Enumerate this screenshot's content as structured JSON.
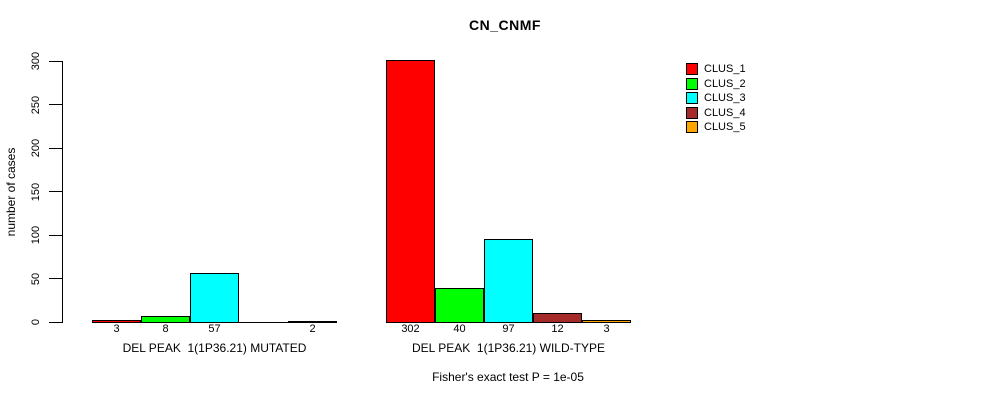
{
  "title": "CN_CNMF",
  "y_axis": {
    "label": "number of cases",
    "ticks": [
      0,
      50,
      100,
      150,
      200,
      250,
      300
    ]
  },
  "footer": "Fisher's exact test P = 1e-05",
  "legend": {
    "position": "right",
    "items": [
      {
        "label": "CLUS_1",
        "color": "#FF0000"
      },
      {
        "label": "CLUS_2",
        "color": "#00FF00"
      },
      {
        "label": "CLUS_3",
        "color": "#00FFFF"
      },
      {
        "label": "CLUS_4",
        "color": "#A52A2A"
      },
      {
        "label": "CLUS_5",
        "color": "#FFA500"
      }
    ]
  },
  "chart_data": {
    "type": "bar",
    "title": "CN_CNMF",
    "ylabel": "number of cases",
    "ylim": [
      0,
      300
    ],
    "yticks": [
      0,
      50,
      100,
      150,
      200,
      250,
      300
    ],
    "grid": false,
    "legend_position": "right",
    "series_labels": [
      "CLUS_1",
      "CLUS_2",
      "CLUS_3",
      "CLUS_4",
      "CLUS_5"
    ],
    "series_colors": [
      "#FF0000",
      "#00FF00",
      "#00FFFF",
      "#A52A2A",
      "#FFA500"
    ],
    "groups": [
      {
        "label": "DEL PEAK  1(1P36.21) MUTATED",
        "values": [
          3,
          8,
          57,
          0,
          2
        ],
        "value_labels": [
          "3",
          "8",
          "57",
          "",
          "2"
        ]
      },
      {
        "label": "DEL PEAK  1(1P36.21) WILD-TYPE",
        "values": [
          302,
          40,
          97,
          12,
          3
        ],
        "value_labels": [
          "302",
          "40",
          "97",
          "12",
          "3"
        ]
      }
    ],
    "annotation": "Fisher's exact test P = 1e-05"
  }
}
